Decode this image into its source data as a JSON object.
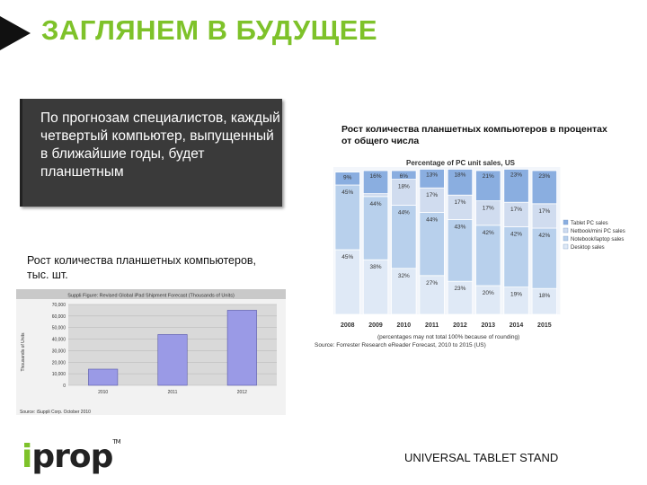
{
  "slide": {
    "title": "ЗАГЛЯНЕМ В БУДУЩЕЕ",
    "callout": "По прогнозам специалистов, каждый четвертый компьютер, выпущенный в ближайшие годы, будет планшетным",
    "caption_left": "Рост количества планшетных компьютеров, тыс. шт.",
    "caption_right": "Рост количества планшетных компьютеров в процентах от общего числа",
    "footer": "UNIVERSAL TABLET STAND",
    "logo": {
      "i": "i",
      "rest": "prop",
      "tm": "TM"
    }
  },
  "chart_data": [
    {
      "type": "bar",
      "title": "Suppli Figure: Revised Global iPad Shipment Forecast (Thousands of Units)",
      "ylabel": "Thousands of Units",
      "source": "Source: iSuppli Corp. October 2010",
      "categories": [
        "2010",
        "2011",
        "2012"
      ],
      "values": [
        14000,
        44000,
        65000
      ],
      "ylim": [
        0,
        70000
      ],
      "yticks": [
        "0",
        "10,000",
        "20,000",
        "30,000",
        "40,000",
        "50,000",
        "60,000",
        "70,000"
      ],
      "colors": {
        "bar": "#9a9ae6",
        "plot_bg": "#d9d9d9"
      }
    },
    {
      "type": "bar",
      "stacked": true,
      "title": "Percentage of PC unit sales, US",
      "categories": [
        "2008",
        "2009",
        "2010",
        "2011",
        "2012",
        "2013",
        "2014",
        "2015"
      ],
      "series": [
        {
          "name": "Desktop sales",
          "values": [
            45,
            38,
            32,
            27,
            23,
            20,
            19,
            18
          ],
          "labels": [
            "45%",
            "38%",
            "32%",
            "27%",
            "23%",
            "20%",
            "19%",
            "18%"
          ],
          "color": "#dfe9f6"
        },
        {
          "name": "Notebook/laptop sales",
          "values": [
            45,
            44,
            44,
            44,
            43,
            42,
            42,
            42
          ],
          "labels": [
            "45%",
            "44%",
            "44%",
            "44%",
            "43%",
            "42%",
            "42%",
            "42%"
          ],
          "color": "#b8d0ec"
        },
        {
          "name": "Netbook/mini PC sales",
          "values": [
            0,
            2,
            18,
            17,
            17,
            17,
            17,
            17
          ],
          "labels": [
            "",
            "",
            "18%",
            "17%",
            "17%",
            "17%",
            "17%",
            "17%"
          ],
          "color": "#d0dcef"
        },
        {
          "name": "Tablet PC sales",
          "values": [
            9,
            16,
            6,
            13,
            18,
            21,
            23,
            23
          ],
          "labels": [
            "9%",
            "16%",
            "6%",
            "13%",
            "18%",
            "21%",
            "23%",
            "23%"
          ],
          "color": "#8aaee0"
        }
      ],
      "note": "(percentages may not total 100% because of rounding)",
      "source": "Source: Forrester Research eReader Forecast, 2010 to 2015 (US)",
      "legend": "right"
    }
  ]
}
